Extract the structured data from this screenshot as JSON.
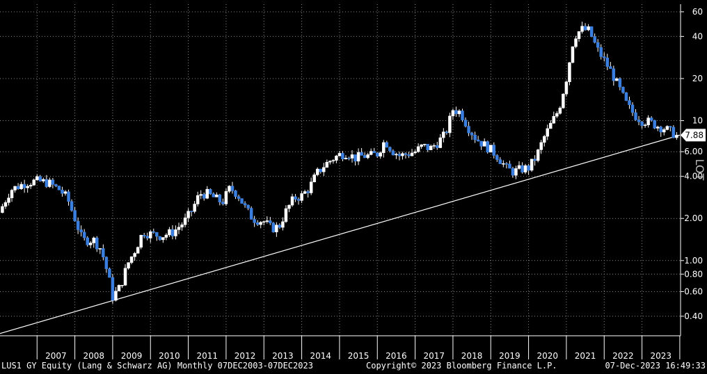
{
  "chart_data": {
    "type": "candlestick",
    "y_scale": "log",
    "ylim": [
      0.29,
      68
    ],
    "xlim": [
      2006.02,
      2024.02
    ],
    "grid": true,
    "y_ticks": [
      {
        "value": 60,
        "label": "60"
      },
      {
        "value": 40,
        "label": "40"
      },
      {
        "value": 20,
        "label": "20"
      },
      {
        "value": 10,
        "label": "10"
      },
      {
        "value": 6,
        "label": "6.00"
      },
      {
        "value": 4,
        "label": "4.00"
      },
      {
        "value": 2,
        "label": "2.00"
      },
      {
        "value": 1,
        "label": "1.00"
      },
      {
        "value": 0.8,
        "label": "0.80"
      },
      {
        "value": 0.6,
        "label": "0.60"
      },
      {
        "value": 0.4,
        "label": "0.40"
      }
    ],
    "x_ticks": [
      "2007",
      "2008",
      "2009",
      "2010",
      "2011",
      "2012",
      "2013",
      "2014",
      "2015",
      "2016",
      "2017",
      "2018",
      "2019",
      "2020",
      "2021",
      "2022",
      "2023"
    ],
    "last_price": 7.88,
    "last_price_label": "7.88",
    "side_label": "LOT",
    "up_color": "#ffffff",
    "down_color": "#3a7fe0",
    "trendline": {
      "from": {
        "x": 2006.0,
        "y": 0.3
      },
      "to": {
        "x": 2024.0,
        "y": 7.88
      }
    },
    "close_path": [
      [
        2006.0,
        2.2
      ],
      [
        2006.3,
        3.2
      ],
      [
        2006.7,
        3.6
      ],
      [
        2007.0,
        3.7
      ],
      [
        2007.3,
        3.6
      ],
      [
        2007.6,
        3.2
      ],
      [
        2007.8,
        2.8
      ],
      [
        2008.0,
        2.0
      ],
      [
        2008.2,
        1.4
      ],
      [
        2008.5,
        1.4
      ],
      [
        2008.7,
        1.2
      ],
      [
        2008.9,
        0.75
      ],
      [
        2009.0,
        0.55
      ],
      [
        2009.2,
        0.65
      ],
      [
        2009.4,
        0.95
      ],
      [
        2009.6,
        1.2
      ],
      [
        2009.8,
        1.6
      ],
      [
        2010.0,
        1.55
      ],
      [
        2010.3,
        1.5
      ],
      [
        2010.6,
        1.6
      ],
      [
        2010.9,
        1.9
      ],
      [
        2011.1,
        2.3
      ],
      [
        2011.3,
        3.0
      ],
      [
        2011.5,
        3.0
      ],
      [
        2011.7,
        2.8
      ],
      [
        2011.9,
        2.6
      ],
      [
        2012.1,
        3.3
      ],
      [
        2012.3,
        3.0
      ],
      [
        2012.5,
        2.4
      ],
      [
        2012.7,
        2.0
      ],
      [
        2013.0,
        1.9
      ],
      [
        2013.2,
        1.7
      ],
      [
        2013.4,
        1.75
      ],
      [
        2013.6,
        2.3
      ],
      [
        2013.8,
        2.8
      ],
      [
        2014.0,
        2.9
      ],
      [
        2014.2,
        3.3
      ],
      [
        2014.4,
        4.2
      ],
      [
        2014.6,
        4.8
      ],
      [
        2014.8,
        5.3
      ],
      [
        2015.0,
        5.7
      ],
      [
        2015.2,
        5.9
      ],
      [
        2015.4,
        5.4
      ],
      [
        2015.6,
        5.6
      ],
      [
        2015.8,
        5.6
      ],
      [
        2016.0,
        5.8
      ],
      [
        2016.2,
        7.2
      ],
      [
        2016.4,
        6.1
      ],
      [
        2016.6,
        5.6
      ],
      [
        2016.8,
        5.8
      ],
      [
        2017.0,
        6.0
      ],
      [
        2017.2,
        6.6
      ],
      [
        2017.4,
        6.3
      ],
      [
        2017.6,
        7.0
      ],
      [
        2017.8,
        8.0
      ],
      [
        2018.0,
        12.0
      ],
      [
        2018.2,
        11.5
      ],
      [
        2018.4,
        9.0
      ],
      [
        2018.6,
        7.5
      ],
      [
        2018.8,
        6.8
      ],
      [
        2019.0,
        6.2
      ],
      [
        2019.2,
        5.5
      ],
      [
        2019.4,
        4.6
      ],
      [
        2019.6,
        4.3
      ],
      [
        2019.8,
        4.5
      ],
      [
        2020.0,
        4.6
      ],
      [
        2020.2,
        5.5
      ],
      [
        2020.4,
        7.5
      ],
      [
        2020.6,
        9.5
      ],
      [
        2020.8,
        12.0
      ],
      [
        2021.0,
        20.0
      ],
      [
        2021.2,
        40.0
      ],
      [
        2021.4,
        45.0
      ],
      [
        2021.6,
        44.0
      ],
      [
        2021.8,
        33.0
      ],
      [
        2022.0,
        27.0
      ],
      [
        2022.2,
        22.0
      ],
      [
        2022.4,
        17.0
      ],
      [
        2022.6,
        13.0
      ],
      [
        2022.8,
        11.0
      ],
      [
        2023.0,
        10.0
      ],
      [
        2023.2,
        9.8
      ],
      [
        2023.4,
        9.2
      ],
      [
        2023.6,
        8.8
      ],
      [
        2023.8,
        8.2
      ],
      [
        2023.93,
        7.88
      ]
    ]
  },
  "footer": {
    "left": "LUS1 GY Equity (Lang & Schwarz AG)  Monthly 07DEC2003-07DEC2023",
    "center": "Copyright© 2023 Bloomberg Finance L.P.",
    "right": "07-Dec-2023 16:49:33"
  }
}
